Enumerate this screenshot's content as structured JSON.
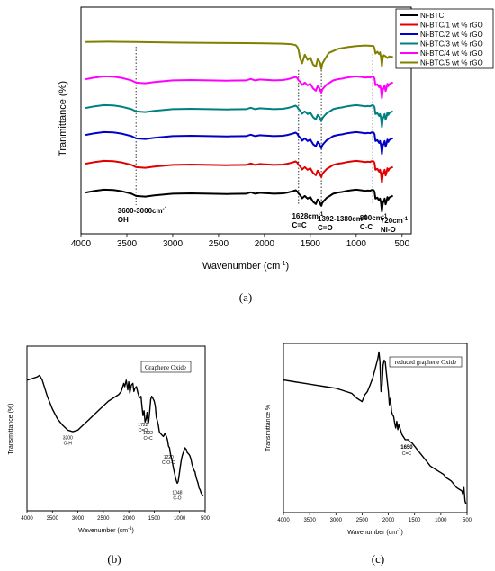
{
  "chart_data": [
    {
      "panel_label": "(a)",
      "type": "line",
      "xlabel": "Wavenumber (cm",
      "xlabel_sup": "-1",
      "xlabel_end": ")",
      "ylabel": "Tranmittance (%)",
      "xlim": [
        4000,
        400
      ],
      "x_reversed": true,
      "xticks": [
        4000,
        3500,
        3000,
        2500,
        2000,
        1500,
        1000,
        500
      ],
      "xtick_labels": [
        "4000",
        "3500",
        "3000",
        "2500",
        "2000",
        "1500",
        "1000",
        "500"
      ],
      "y_ticks_shown": false,
      "legend_position": "top-right",
      "series": [
        {
          "name": "Ni-BTC",
          "color": "#000000",
          "offset": 0,
          "profile": "base"
        },
        {
          "name": "Ni-BTC/1 wt % rGO",
          "color": "#e00000",
          "offset": 1,
          "profile": "base"
        },
        {
          "name": "Ni-BTC/2 wt % rGO",
          "color": "#0000c8",
          "offset": 2,
          "profile": "base"
        },
        {
          "name": "Ni-BTC/3 wt % rGO",
          "color": "#008080",
          "offset": 3,
          "profile": "base"
        },
        {
          "name": "Ni-BTC/4 wt % rGO",
          "color": "#ff00ff",
          "offset": 4,
          "profile": "base"
        },
        {
          "name": "Ni-BTC/5 wt % rGO",
          "color": "#808000",
          "offset": 5,
          "profile": "top"
        }
      ],
      "profiles": {
        "base": {
          "x": [
            3950,
            3850,
            3750,
            3650,
            3550,
            3450,
            3400,
            3300,
            3200,
            3000,
            2800,
            2600,
            2400,
            2200,
            2150,
            2100,
            2050,
            2000,
            1950,
            1900,
            1800,
            1750,
            1700,
            1660,
            1640,
            1628,
            1610,
            1590,
            1560,
            1530,
            1500,
            1470,
            1440,
            1420,
            1400,
            1392,
            1380,
            1370,
            1350,
            1320,
            1300,
            1250,
            1200,
            1150,
            1100,
            1050,
            1000,
            950,
            900,
            870,
            850,
            830,
            810,
            800,
            790,
            770,
            750,
            740,
            730,
            720,
            710,
            700,
            690,
            680,
            670,
            660,
            650,
            640,
            620,
            600
          ],
          "y": [
            0.6,
            1.2,
            1.6,
            1.5,
            1.0,
            0.2,
            -0.6,
            -0.8,
            -0.4,
            0.2,
            0.3,
            0.2,
            0.1,
            0.2,
            0.7,
            0.2,
            0.5,
            0.4,
            0.3,
            0.2,
            0.3,
            0.6,
            1.0,
            1.4,
            0.9,
            0.2,
            -0.3,
            -1.4,
            -0.6,
            -1.5,
            -1.0,
            -2.6,
            -3.4,
            -1.8,
            -2.6,
            -3.4,
            -4.0,
            -3.0,
            -2.2,
            -1.2,
            -0.8,
            0.2,
            0.6,
            0.8,
            1.2,
            1.4,
            1.6,
            1.4,
            1.2,
            1.3,
            1.2,
            1.5,
            1.4,
            0.8,
            -1.5,
            -1.2,
            -2.2,
            -1.5,
            -3.0,
            -6.0,
            -3.0,
            -2.5,
            -1.5,
            -3.5,
            -2.5,
            -1.0,
            -1.8,
            -1.2,
            -0.8,
            -0.5
          ]
        },
        "top": {
          "x": [
            3950,
            3700,
            3400,
            3000,
            2600,
            2200,
            2000,
            1800,
            1700,
            1660,
            1640,
            1628,
            1610,
            1590,
            1560,
            1530,
            1500,
            1470,
            1440,
            1420,
            1400,
            1392,
            1380,
            1370,
            1350,
            1300,
            1200,
            1100,
            1000,
            900,
            850,
            810,
            800,
            790,
            770,
            750,
            740,
            730,
            720,
            710,
            700,
            680,
            660,
            640,
            620,
            600
          ],
          "y": [
            0.4,
            0.5,
            0.4,
            0.2,
            0.1,
            0.0,
            -0.1,
            -0.2,
            -0.4,
            -0.7,
            -1.4,
            -2.4,
            -5.4,
            -7.0,
            -4.0,
            -5.8,
            -5.0,
            -7.4,
            -8.2,
            -5.6,
            -6.4,
            -7.0,
            -9.0,
            -7.2,
            -6.0,
            -3.4,
            -2.0,
            -1.4,
            -1.0,
            -0.8,
            -0.9,
            -1.0,
            -1.8,
            -3.6,
            -3.0,
            -3.8,
            -3.2,
            -5.0,
            -8.0,
            -4.8,
            -4.2,
            -4.6,
            -5.2,
            -4.6,
            -4.8,
            -4.7
          ]
        }
      },
      "reference_lines": [
        3400,
        1628,
        1380,
        820,
        720
      ],
      "annotations": [
        {
          "text": "3600-3000cm",
          "sup": "-1",
          "x": 3600,
          "line2": "OH"
        },
        {
          "text": "1628cm",
          "sup": "-1",
          "x": 1700,
          "line2": "C=C"
        },
        {
          "text": "1392-1380cm",
          "sup": "-1",
          "x": 1420,
          "line2": "C=O"
        },
        {
          "text": "800cm",
          "sup": "-1",
          "x": 960,
          "line2": "C-C"
        },
        {
          "text": "720cm",
          "sup": "-1",
          "x": 735,
          "line2": "Ni-O"
        }
      ]
    },
    {
      "panel_label": "(b)",
      "type": "line",
      "box_label": "Graphene Oxide",
      "xlabel": "Wavenumber (cm",
      "xlabel_sup": "-1",
      "xlabel_end": ")",
      "ylabel": "Transmittance (%)",
      "xlim": [
        4000,
        500
      ],
      "x_reversed": true,
      "xtick_labels": [
        "4000",
        "3500",
        "3000",
        "2500",
        "2000",
        "1500",
        "1000",
        "500"
      ],
      "xticks": [
        4000,
        3500,
        3000,
        2500,
        2000,
        1500,
        1000,
        500
      ],
      "ylim": [
        0,
        100
      ],
      "y_ticks_shown": false,
      "series": [
        {
          "name": "",
          "color": "#000000",
          "x": [
            4000,
            3900,
            3800,
            3750,
            3700,
            3600,
            3500,
            3400,
            3300,
            3200,
            3100,
            3000,
            2900,
            2800,
            2700,
            2600,
            2500,
            2400,
            2300,
            2200,
            2150,
            2100,
            2080,
            2050,
            2020,
            2000,
            1980,
            1950,
            1920,
            1900,
            1880,
            1850,
            1820,
            1790,
            1760,
            1740,
            1722,
            1700,
            1680,
            1660,
            1640,
            1622,
            1610,
            1590,
            1570,
            1550,
            1530,
            1500,
            1480,
            1460,
            1440,
            1420,
            1400,
            1380,
            1350,
            1320,
            1290,
            1260,
            1240,
            1220,
            1200,
            1180,
            1150,
            1120,
            1100,
            1080,
            1060,
            1048,
            1030,
            1010,
            990,
            970,
            950,
            930,
            900,
            870,
            850,
            820,
            800,
            780,
            760,
            740,
            720,
            700,
            680,
            660,
            640,
            620,
            600,
            580,
            560,
            540
          ],
          "y": [
            80,
            81,
            82,
            83,
            80,
            70,
            62,
            56,
            52,
            49,
            48,
            49,
            52,
            55,
            58,
            61,
            64,
            67,
            69,
            71,
            73,
            78,
            76,
            80,
            74,
            79,
            72,
            77,
            78,
            73,
            75,
            76,
            72,
            69,
            70,
            63,
            58,
            61,
            54,
            56,
            60,
            53,
            54,
            60,
            68,
            70,
            69,
            67,
            64,
            57,
            55,
            52,
            48,
            47,
            46,
            45,
            47,
            45,
            43,
            39,
            38,
            34,
            30,
            25,
            22,
            19,
            17,
            16,
            17,
            21,
            26,
            30,
            33,
            35,
            38,
            37,
            35,
            34,
            33,
            31,
            28,
            26,
            24,
            23,
            20,
            18,
            16,
            13,
            12,
            10,
            9,
            8
          ]
        }
      ],
      "annotations": [
        {
          "text": "3200",
          "line2": "O-H",
          "x": 3200
        },
        {
          "text": "1722",
          "line2": "C=O",
          "x": 1722
        },
        {
          "text": "1622",
          "line2": "C=C",
          "x": 1622
        },
        {
          "text": "1220",
          "line2": "C-O-C",
          "x": 1220
        },
        {
          "text": "1048",
          "line2": "C-O",
          "x": 1048
        }
      ]
    },
    {
      "panel_label": "(c)",
      "type": "line",
      "box_label": "reduced graphene Oxide",
      "xlabel": "Wavenumber (cm",
      "xlabel_sup": "-1",
      "xlabel_end": ")",
      "ylabel": "Transmittance %",
      "xlim": [
        4000,
        500
      ],
      "x_reversed": true,
      "xtick_labels": [
        "4000",
        "3500",
        "3000",
        "2500",
        "2000",
        "1500",
        "1000",
        "500"
      ],
      "xticks": [
        4000,
        3500,
        3000,
        2500,
        2000,
        1500,
        1000,
        500
      ],
      "ylim": [
        0,
        100
      ],
      "y_ticks_shown": false,
      "series": [
        {
          "name": "",
          "color": "#000000",
          "x": [
            4000,
            3800,
            3600,
            3400,
            3200,
            3000,
            2800,
            2700,
            2600,
            2500,
            2450,
            2400,
            2350,
            2300,
            2250,
            2200,
            2180,
            2160,
            2140,
            2120,
            2100,
            2080,
            2060,
            2040,
            2020,
            2000,
            1980,
            1960,
            1940,
            1920,
            1900,
            1880,
            1860,
            1840,
            1820,
            1800,
            1780,
            1760,
            1740,
            1720,
            1700,
            1680,
            1650,
            1620,
            1600,
            1550,
            1500,
            1450,
            1400,
            1350,
            1300,
            1250,
            1200,
            1150,
            1100,
            1050,
            1000,
            950,
            900,
            850,
            800,
            750,
            700,
            650,
            600,
            580,
            560,
            540,
            520
          ],
          "y": [
            79,
            78,
            77,
            76,
            75,
            74,
            72,
            71,
            68,
            66,
            70,
            72,
            76,
            80,
            86,
            92,
            96,
            90,
            72,
            76,
            88,
            91,
            90,
            84,
            78,
            72,
            64,
            68,
            60,
            58,
            57,
            53,
            50,
            54,
            49,
            52,
            50,
            48,
            46,
            45,
            44,
            43,
            43,
            43,
            42,
            41,
            39,
            37,
            35,
            33,
            31,
            29,
            27,
            26,
            25,
            24,
            23,
            22,
            20,
            19,
            18,
            16,
            14,
            13,
            12,
            10,
            14,
            6,
            4
          ]
        }
      ],
      "annotations": [
        {
          "text": "1650",
          "line2": "C=C",
          "x": 1650
        }
      ]
    }
  ]
}
